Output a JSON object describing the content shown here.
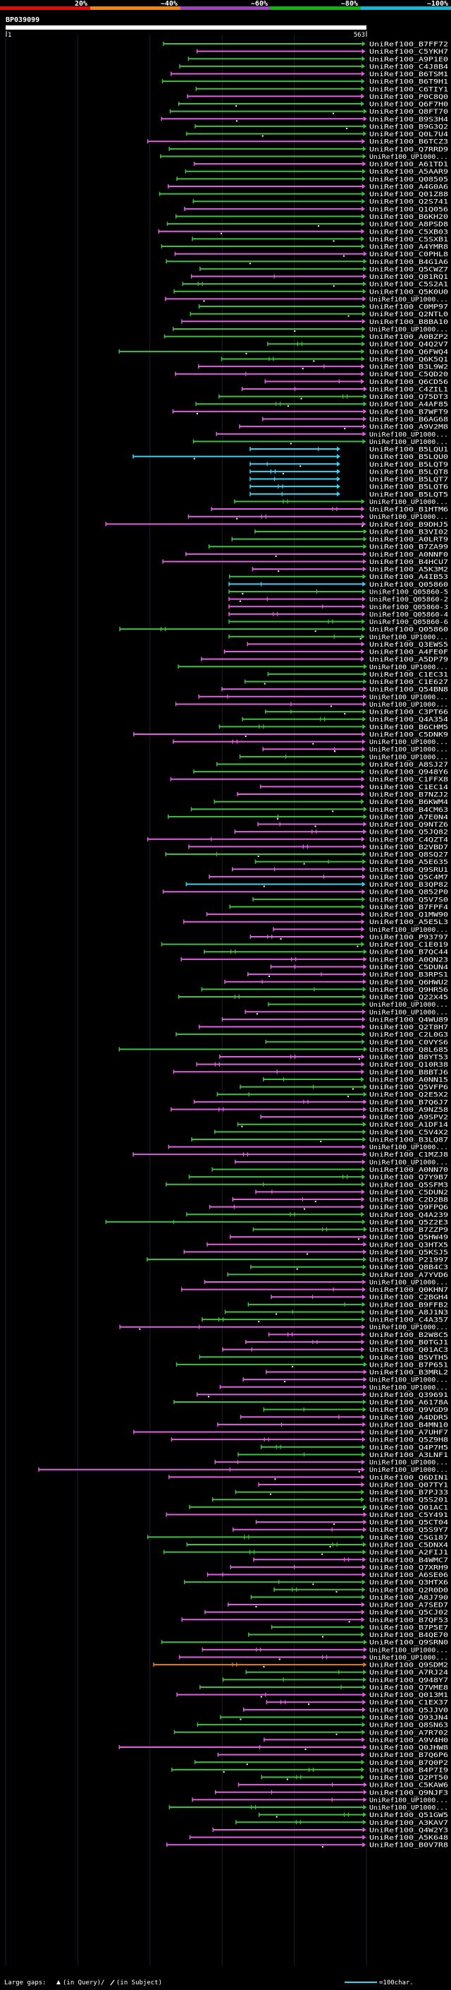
{
  "query_id": "BP039099",
  "ruler": {
    "start": "1",
    "end": "563"
  },
  "identity_scale": [
    {
      "label": "20%",
      "color": "#ff0000"
    },
    {
      "label": "~40%",
      "color": "#ff8000"
    },
    {
      "label": "~60%",
      "color": "#a040c0"
    },
    {
      "label": "~80%",
      "color": "#00c000"
    },
    {
      "label": "~100%",
      "color": "#00c0e0"
    }
  ],
  "footer": {
    "large_gaps": "Large gaps:",
    "gap_query": "(in Query)/",
    "gap_subject": "(in Subject)",
    "scale_label": "=100char."
  },
  "hits": [
    "UniRef100_B7FF72",
    "UniRef100_C5YKH7",
    "UniRef100_A9P1E0",
    "UniRef100_C4J8B4",
    "UniRef100_B6TSM1",
    "UniRef100_B6T9H1",
    "UniRef100_C6TIY1",
    "UniRef100_P0C8Q0",
    "UniRef100_Q6F7H0",
    "UniRef100_Q8FT70",
    "UniRef100_B9S3H4",
    "UniRef100_B9G3Q2",
    "UniRef100_Q0L7U4",
    "UniRef100_B6TCZ3",
    "UniRef100_Q7RRD9",
    "UniRef100_UP1000...",
    "UniRef100_A61TD1",
    "UniRef100_A5AAR9",
    "UniRef100_Q08505",
    "UniRef100_A4G0A6",
    "UniRef100_Q01Z88",
    "UniRef100_Q2S741",
    "UniRef100_Q1Q056",
    "UniRef100_B6KH20",
    "UniRef100_A8PSD8",
    "UniRef100_C5XB03",
    "UniRef100_C5SXB1",
    "UniRef100_A4YMR8",
    "UniRef100_C0PHL8",
    "UniRef100_B4G1A6",
    "UniRef100_Q5CWZ7",
    "UniRef100_Q81RQ1",
    "UniRef100_C5S2A1",
    "UniRef100_Q5K0U0",
    "UniRef100_UP1000...",
    "UniRef100_C0MP97",
    "UniRef100_Q2NTL0",
    "UniRef100_B8BA10",
    "UniRef100_UP1000...",
    "UniRef100_A0BZP2",
    "UniRef100_Q4Q2V7",
    "UniRef100_Q6FWQ4",
    "UniRef100_Q6K5Q1",
    "UniRef100_B3L9W2",
    "UniRef100_C5QD20",
    "UniRef100_Q6CD56",
    "UniRef100_C4ZIL1",
    "UniRef100_Q75DT3",
    "UniRef100_A4AF85",
    "UniRef100_B7WFT9",
    "UniRef100_B6AG68",
    "UniRef100_A9V2M8",
    "UniRef100_UP1000...",
    "UniRef100_UP1000...",
    "UniRef100_B5LQU1",
    "UniRef100_B5LQU0",
    "UniRef100_B5LQT9",
    "UniRef100_B5LQT8",
    "UniRef100_B5LQT7",
    "UniRef100_B5LQT6",
    "UniRef100_B5LQT5",
    "UniRef100_UP1000...",
    "UniRef100_B1HTM6",
    "UniRef100_UP1000...",
    "UniRef100_B9DHJ5",
    "UniRef100_B3VI02",
    "UniRef100_A0LRT9",
    "UniRef100_B7ZA99",
    "UniRef100_A0NNF0",
    "UniRef100_B4HCU7",
    "UniRef100_A5K3M2",
    "UniRef100_A4IB53",
    "UniRef100_Q05860",
    "UniRef100_Q05860-5",
    "UniRef100_Q05860-2",
    "UniRef100_Q05860-3",
    "UniRef100_Q05860-4",
    "UniRef100_Q05860-6",
    "UniRef100_Q05860",
    "UniRef100_UP1000...",
    "UniRef100_Q3EWS5",
    "UniRef100_A4FE0F",
    "UniRef100_A5DP79",
    "UniRef100_UP1000...",
    "UniRef100_C1EC31",
    "UniRef100_C1E627",
    "UniRef100_Q54BN8",
    "UniRef100_UP1000...",
    "UniRef100_UP1000...",
    "UniRef100_C3PT66",
    "UniRef100_Q4A354",
    "UniRef100_B6CHM5",
    "UniRef100_C5DNK9",
    "UniRef100_UP1000...",
    "UniRef100_UP1000...",
    "UniRef100_UP1000...",
    "UniRef100_A8SJ27",
    "UniRef100_Q948Y6",
    "UniRef100_C1FFX8",
    "UniRef100_C1EC14",
    "UniRef100_B7NZJ2",
    "UniRef100_B6KWM4",
    "UniRef100_B4CM63",
    "UniRef100_A7E0N4",
    "UniRef100_Q9NTZ6",
    "UniRef100_Q5JQ82",
    "UniRef100_C4QZT4",
    "UniRef100_B2VBD7",
    "UniRef100_Q8SQ27",
    "UniRef100_A5E635",
    "UniRef100_Q9SRU1",
    "UniRef100_Q5C4M7",
    "UniRef100_B3QP82",
    "UniRef100_Q852P0",
    "UniRef100_Q5V7S0",
    "UniRef100_B7FPF4",
    "UniRef100_Q1MW90",
    "UniRef100_A5E5L3",
    "UniRef100_UP1000...",
    "UniRef100_P93797",
    "UniRef100_C1E019",
    "UniRef100_B7QC44",
    "UniRef100_A0QN23",
    "UniRef100_C5DUN4",
    "UniRef100_B3RPS1",
    "UniRef100_Q6HWU2",
    "UniRef100_Q9HR56",
    "UniRef100_Q22X45",
    "UniRef100_UP1000...",
    "UniRef100_UP1000...",
    "UniRef100_Q4WU89",
    "UniRef100_Q2T8H7",
    "UniRef100_C2L0G3",
    "UniRef100_C0VYS6",
    "UniRef100_Q8L685",
    "UniRef100_B8YT53",
    "UniRef100_Q10R38",
    "UniRef100_B8BTJ6",
    "UniRef100_A0NN15",
    "UniRef100_Q5VFP6",
    "UniRef100_Q2E5X2",
    "UniRef100_B7Q6J7",
    "UniRef100_A9NZ58",
    "UniRef100_A9SPV2",
    "UniRef100_A1DF14",
    "UniRef100_C5V4X2",
    "UniRef100_B3LQ87",
    "UniRef100_UP1000...",
    "UniRef100_C1MZJ8",
    "UniRef100_UP1000...",
    "UniRef100_A0NN70",
    "UniRef100_Q7Y9B7",
    "UniRef100_Q5SFM3",
    "UniRef100_C5DUN2",
    "UniRef100_C2D2B8",
    "UniRef100_Q9FPQ6",
    "UniRef100_Q4A239",
    "UniRef100_Q5Z2E3",
    "UniRef100_B7ZZP9",
    "UniRef100_Q5HW49",
    "UniRef100_Q3HTX5",
    "UniRef100_Q5KSJ5",
    "UniRef100_P21997",
    "UniRef100_Q8B4C3",
    "UniRef100_A7YVD6",
    "UniRef100_UP1000...",
    "UniRef100_Q0KHN7",
    "UniRef100_C2BGH4",
    "UniRef100_B9FFB2",
    "UniRef100_A8J1N3",
    "UniRef100_C4A357",
    "UniRef100_UP1000...",
    "UniRef100_B2W8C5",
    "UniRef100_B0TGJ1",
    "UniRef100_Q01AC3",
    "UniRef100_B5VTH5",
    "UniRef100_B7P651",
    "UniRef100_B3MRL2",
    "UniRef100_UP1000...",
    "UniRef100_UP1000...",
    "UniRef100_Q39691",
    "UniRef100_A6178A",
    "UniRef100_Q9VGD9",
    "UniRef100_A4DDR5",
    "UniRef100_B4MN10",
    "UniRef100_A7UHF7",
    "UniRef100_Q5Z9H8",
    "UniRef100_Q4P7H5",
    "UniRef100_A3LNF1",
    "UniRef100_UP1000...",
    "UniRef100_UP1000...",
    "UniRef100_Q6DIN1",
    "UniRef100_Q07TY1",
    "UniRef100_B7PJ33",
    "UniRef100_Q5S201",
    "UniRef100_Q01AC1",
    "UniRef100_C5Y491",
    "UniRef100_Q5CT04",
    "UniRef100_Q5S9Y7",
    "UniRef100_C5G187",
    "UniRef100_C5DNX4",
    "UniRef100_A2FIJ1",
    "UniRef100_B4WMC7",
    "UniRef100_Q7XRH9",
    "UniRef100_A6SE06",
    "UniRef100_Q3HTX6",
    "UniRef100_Q2R0D0",
    "UniRef100_A8J790",
    "UniRef100_A7SED7",
    "UniRef100_Q5CJ02",
    "UniRef100_B7QF53",
    "UniRef100_B7P5E7",
    "UniRef100_B4QE70",
    "UniRef100_Q9SRN0",
    "UniRef100_UP1000...",
    "UniRef100_UP1000...",
    "UniRef100_Q9SDM2",
    "UniRef100_A7RJ24",
    "UniRef100_Q948Y7",
    "UniRef100_Q7VME8",
    "UniRef100_Q013M1",
    "UniRef100_C1EX37",
    "UniRef100_Q5JJV0",
    "UniRef100_Q93JN4",
    "UniRef100_Q8SN63",
    "UniRef100_A7R702",
    "UniRef100_A9V4H0",
    "UniRef100_Q0JHW8",
    "UniRef100_B7Q6P6",
    "UniRef100_B7Q0P2",
    "UniRef100_B4P7I9",
    "UniRef100_Q2PT50",
    "UniRef100_C5KAW6",
    "UniRef100_Q9NJF3",
    "UniRef100_UP1000...",
    "UniRef100_UP1000...",
    "UniRef100_Q51GW5",
    "UniRef100_A3KAV7",
    "UniRef100_Q4W2Y3",
    "UniRef100_A5K648",
    "UniRef100_B0V7R8"
  ]
}
